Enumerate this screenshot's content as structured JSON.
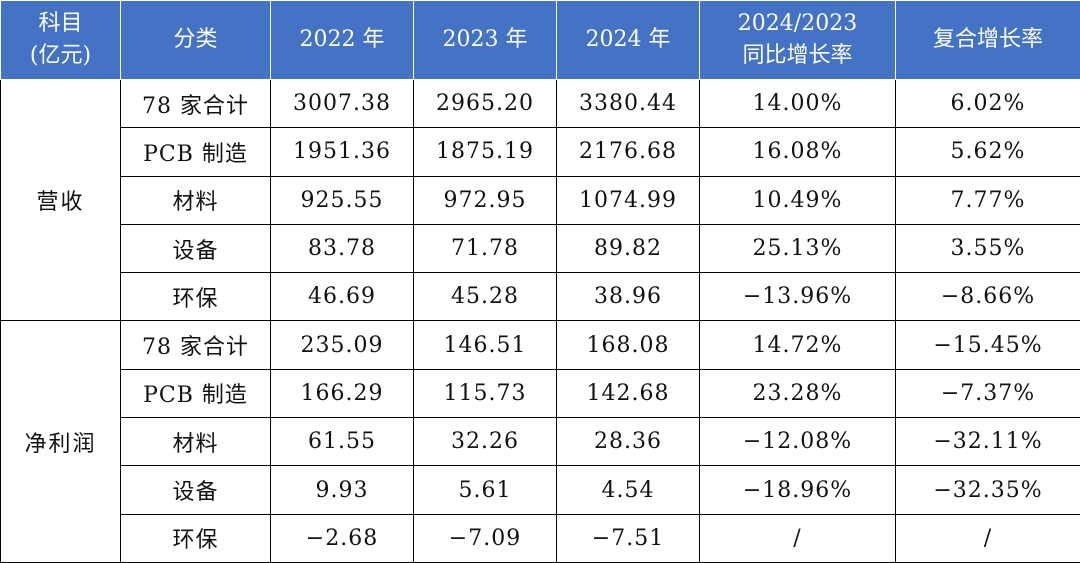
{
  "header": {
    "col0_line1": "科目",
    "col0_line2": "(亿元)",
    "col1": "分类",
    "col2": "2022 年",
    "col3": "2023 年",
    "col4": "2024 年",
    "col5_line1": "2024/2023",
    "col5_line2": "同比增长率",
    "col6": "复合增长率"
  },
  "groups": [
    {
      "name": "营收",
      "rows": [
        [
          "78 家合计",
          "3007.38",
          "2965.20",
          "3380.44",
          "14.00%",
          "6.02%"
        ],
        [
          "PCB 制造",
          "1951.36",
          "1875.19",
          "2176.68",
          "16.08%",
          "5.62%"
        ],
        [
          "材料",
          "925.55",
          "972.95",
          "1074.99",
          "10.49%",
          "7.77%"
        ],
        [
          "设备",
          "83.78",
          "71.78",
          "89.82",
          "25.13%",
          "3.55%"
        ],
        [
          "环保",
          "46.69",
          "45.28",
          "38.96",
          "−13.96%",
          "−8.66%"
        ]
      ]
    },
    {
      "name": "净利润",
      "rows": [
        [
          "78 家合计",
          "235.09",
          "146.51",
          "168.08",
          "14.72%",
          "−15.45%"
        ],
        [
          "PCB 制造",
          "166.29",
          "115.73",
          "142.68",
          "23.28%",
          "−7.37%"
        ],
        [
          "材料",
          "61.55",
          "32.26",
          "28.36",
          "−12.08%",
          "−32.11%"
        ],
        [
          "设备",
          "9.93",
          "5.61",
          "4.54",
          "−18.96%",
          "−32.35%"
        ],
        [
          "环保",
          "−2.68",
          "−7.09",
          "−7.51",
          "/",
          "/"
        ]
      ]
    }
  ]
}
